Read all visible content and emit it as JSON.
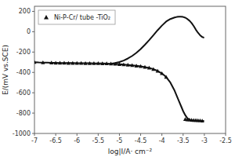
{
  "chart_data": {
    "type": "line",
    "xlabel": "log|I/A· cm⁻²",
    "ylabel": "E/(mV vs.SCE)",
    "xlim": [
      -7.0,
      -2.5
    ],
    "ylim": [
      -1000,
      250
    ],
    "xticks": [
      -7,
      -6.5,
      -6,
      -5.5,
      -5,
      -4.5,
      -4,
      -3.5,
      -3,
      -2.5
    ],
    "yticks": [
      -1000,
      -800,
      -600,
      -400,
      -200,
      0,
      200
    ],
    "grid": false,
    "legend": "upper left",
    "series": [
      {
        "type": "line",
        "color": "#111111",
        "x": [
          -7.0,
          -6.9,
          -6.8,
          -6.7,
          -6.6,
          -6.5,
          -6.4,
          -6.3,
          -6.2,
          -6.1,
          -6.0,
          -5.9,
          -5.8,
          -5.7,
          -5.6,
          -5.5,
          -5.4,
          -5.3,
          -5.2,
          -5.1,
          -5.0,
          -4.9,
          -4.8,
          -4.7,
          -4.6,
          -4.5,
          -4.4,
          -4.3,
          -4.2,
          -4.1,
          -4.0,
          -3.9,
          -3.8,
          -3.7,
          -3.65,
          -3.6,
          -3.55,
          -3.5,
          -3.45,
          -3.4,
          -3.35,
          -3.3,
          -3.25,
          -3.2,
          -3.15,
          -3.1,
          -3.05,
          -3.02
        ],
        "values": [
          -300,
          -302,
          -303,
          -304,
          -305,
          -306,
          -307,
          -307,
          -308,
          -308,
          -309,
          -309,
          -310,
          -310,
          -311,
          -311,
          -312,
          -313,
          -315,
          -317,
          -320,
          -323,
          -326,
          -330,
          -335,
          -340,
          -347,
          -355,
          -368,
          -385,
          -410,
          -445,
          -500,
          -580,
          -630,
          -680,
          -730,
          -780,
          -820,
          -850,
          -865,
          -870,
          -872,
          -874,
          -875,
          -876,
          -877,
          -877
        ]
      },
      {
        "type": "line",
        "color": "#111111",
        "x": [
          -5.2,
          -5.1,
          -5.0,
          -4.9,
          -4.8,
          -4.7,
          -4.6,
          -4.5,
          -4.4,
          -4.3,
          -4.2,
          -4.1,
          -4.0,
          -3.9,
          -3.8,
          -3.7,
          -3.65,
          -3.6,
          -3.55,
          -3.5,
          -3.45,
          -3.4,
          -3.35,
          -3.3,
          -3.25,
          -3.2,
          -3.15,
          -3.1,
          -3.05,
          -3.02
        ],
        "values": [
          -315,
          -308,
          -298,
          -283,
          -263,
          -238,
          -207,
          -170,
          -128,
          -83,
          -35,
          15,
          60,
          100,
          125,
          140,
          145,
          148,
          148,
          145,
          138,
          125,
          108,
          85,
          55,
          20,
          -10,
          -35,
          -52,
          -57
        ]
      },
      {
        "type": "scatter",
        "marker": "triangle",
        "color": "#111111",
        "name": "Ni-P-Cr/ tube -TiO₂",
        "x": [
          -7.0,
          -6.8,
          -6.6,
          -6.5,
          -6.4,
          -6.3,
          -6.2,
          -6.1,
          -6.0,
          -5.9,
          -5.8,
          -5.7,
          -5.6,
          -5.5,
          -5.4,
          -5.3,
          -5.2,
          -5.1,
          -5.0,
          -4.9,
          -4.8,
          -4.7,
          -4.6,
          -4.5,
          -4.4,
          -4.3,
          -4.2,
          -4.1,
          -4.0,
          -3.9
        ],
        "values": [
          -300,
          -303,
          -305,
          -306,
          -307,
          -307,
          -308,
          -308,
          -309,
          -309,
          -310,
          -310,
          -311,
          -311,
          -312,
          -313,
          -315,
          -317,
          -320,
          -323,
          -326,
          -330,
          -335,
          -340,
          -347,
          -355,
          -368,
          -385,
          -410,
          -445
        ]
      },
      {
        "type": "scatter",
        "marker": "triangle",
        "color": "#111111",
        "x": [
          -3.45,
          -3.4,
          -3.35,
          -3.3,
          -3.25,
          -3.2,
          -3.15,
          -3.1,
          -3.05
        ],
        "values": [
          -860,
          -865,
          -865,
          -868,
          -870,
          -870,
          -872,
          -873,
          -875
        ]
      }
    ]
  }
}
